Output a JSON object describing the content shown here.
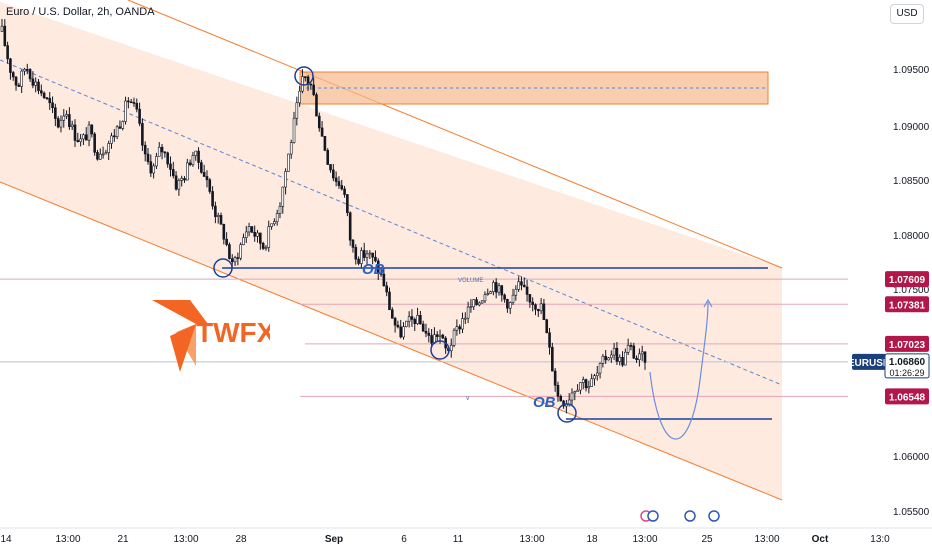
{
  "header": {
    "title": "Euro / U.S. Dollar, 2h, OANDA",
    "currency": "USD"
  },
  "logo": {
    "text": "TWFX"
  },
  "annotations": {
    "ob_label": "OB",
    "volume_label": "VOLUME",
    "v_label": "v"
  },
  "colors": {
    "bull": "#131722",
    "channel": "#f57c2e",
    "fill": "#fde3d3",
    "zone": "#f7b98c",
    "support": "#1c3f9a",
    "dash": "#5b84d8",
    "tag": "#b2174a",
    "tag_current": "#1a3f7a",
    "arc": "#6a8fe0"
  },
  "chart_data": {
    "type": "candlestick",
    "symbol": "EURUSD",
    "title": "Euro / U.S. Dollar, 2h, OANDA",
    "x_tick_labels": [
      "14",
      "13:00",
      "21",
      "13:00",
      "28",
      "Sep",
      "6",
      "11",
      "13:00",
      "18",
      "13:00",
      "25",
      "13:00",
      "Oct",
      "13:0"
    ],
    "y_tick_labels": [
      "1.09500",
      "1.09000",
      "1.08500",
      "1.08000",
      "1.07500",
      "1.06000",
      "1.05500"
    ],
    "ylim": [
      1.0545,
      1.0985
    ],
    "price_tags": [
      {
        "value": 1.07609,
        "label": "1.07609"
      },
      {
        "value": 1.07381,
        "label": "1.07381"
      },
      {
        "value": 1.07023,
        "label": "1.07023"
      },
      {
        "value": 1.06548,
        "label": "1.06548"
      }
    ],
    "current_price": {
      "symbol": "EURUSD",
      "value": 1.0686,
      "label": "1.06860",
      "countdown": "01:26:29"
    },
    "swing_path": [
      1.0985,
      1.0952,
      1.0935,
      1.0955,
      1.094,
      1.093,
      1.0918,
      1.09,
      1.0915,
      1.0893,
      1.0885,
      1.0895,
      1.0875,
      1.088,
      1.089,
      1.0905,
      1.0925,
      1.091,
      1.087,
      1.086,
      1.088,
      1.0868,
      1.0845,
      1.0855,
      1.0875,
      1.0865,
      1.0845,
      1.0818,
      1.08,
      1.0772,
      1.079,
      1.081,
      1.08,
      1.079,
      1.0812,
      1.083,
      1.087,
      1.091,
      1.0945,
      1.0935,
      1.09,
      1.087,
      1.085,
      1.0845,
      1.079,
      1.078,
      1.0785,
      1.0775,
      1.076,
      1.073,
      1.071,
      1.072,
      1.0725,
      1.0718,
      1.0705,
      1.0713,
      1.0695,
      1.071,
      1.0725,
      1.0735,
      1.074,
      1.0752,
      1.0758,
      1.0745,
      1.0738,
      1.0755,
      1.0747,
      1.074,
      1.0735,
      1.0695,
      1.0655,
      1.065,
      1.0662,
      1.067,
      1.0665,
      1.0675,
      1.069,
      1.0697,
      1.0685,
      1.07,
      1.0688,
      1.069
    ]
  }
}
